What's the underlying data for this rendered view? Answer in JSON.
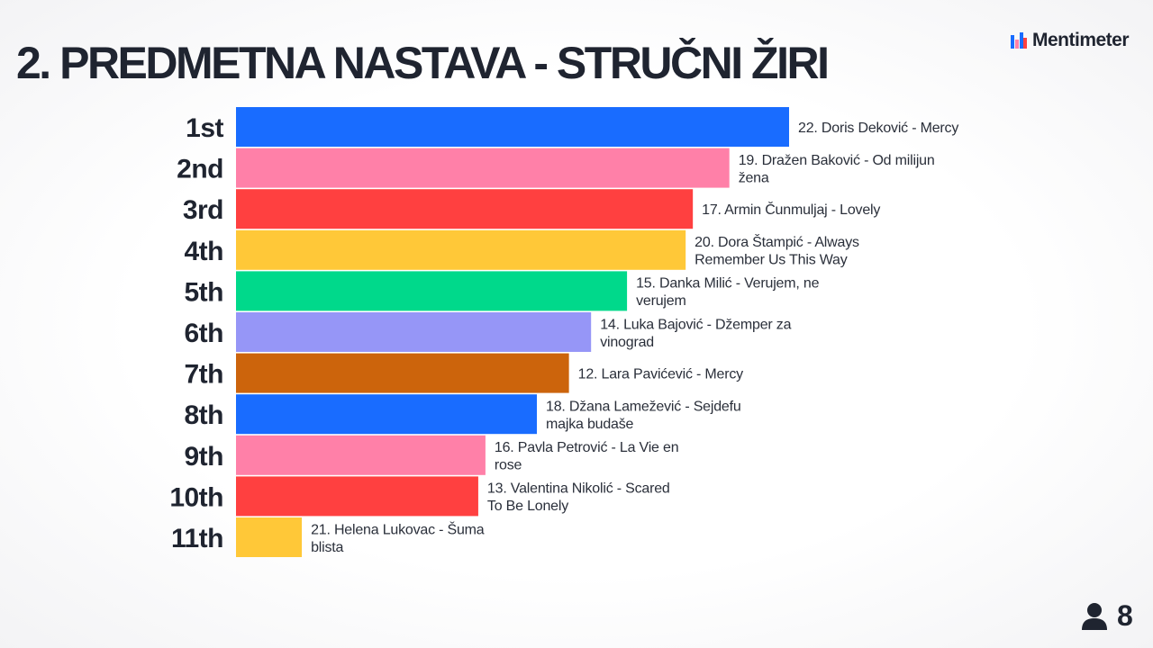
{
  "title": "2. PREDMETNA NASTAVA - STRUČNI ŽIRI",
  "brand": {
    "name": "Mentimeter",
    "icon": "mentimeter-logo-icon"
  },
  "participants": {
    "icon": "user-icon",
    "count": "8"
  },
  "chart_data": {
    "type": "bar",
    "orientation": "horizontal",
    "title": "2. PREDMETNA NASTAVA - STRUČNI ŽIRI",
    "categories": [
      "1st",
      "2nd",
      "3rd",
      "4th",
      "5th",
      "6th",
      "7th",
      "8th",
      "9th",
      "10th",
      "11th"
    ],
    "labels": [
      [
        "22. Doris Deković - Mercy"
      ],
      [
        "19. Dražen Baković - Od milijun",
        "žena"
      ],
      [
        "17. Armin Čunmuljaj - Lovely"
      ],
      [
        "20. Dora Štampić - Always",
        "Remember Us This Way"
      ],
      [
        "15. Danka Milić - Verujem, ne",
        "verujem"
      ],
      [
        "14. Luka Bajović - Džemper za",
        "vinograd"
      ],
      [
        "12. Lara Pavićević - Mercy"
      ],
      [
        "18. Džana Lamežević - Sejdefu",
        "majka budaše"
      ],
      [
        "16. Pavla Petrović - La Vie en",
        "rose"
      ],
      [
        "13. Valentina Nikolić - Scared",
        "To Be Lonely"
      ],
      [
        "21. Helena Lukovac - Šuma",
        "blista"
      ]
    ],
    "values": [
      100,
      89.2,
      82.6,
      81.3,
      70.7,
      64.2,
      60.2,
      54.4,
      45.1,
      43.8,
      11.9
    ],
    "value_max": 100,
    "colors": [
      "#196cff",
      "#ff80a8",
      "#ff4040",
      "#ffc838",
      "#00d98b",
      "#9696f7",
      "#cc640c",
      "#196cff",
      "#ff80a8",
      "#ff4040",
      "#ffc838"
    ],
    "grid": false,
    "legend": "none"
  }
}
